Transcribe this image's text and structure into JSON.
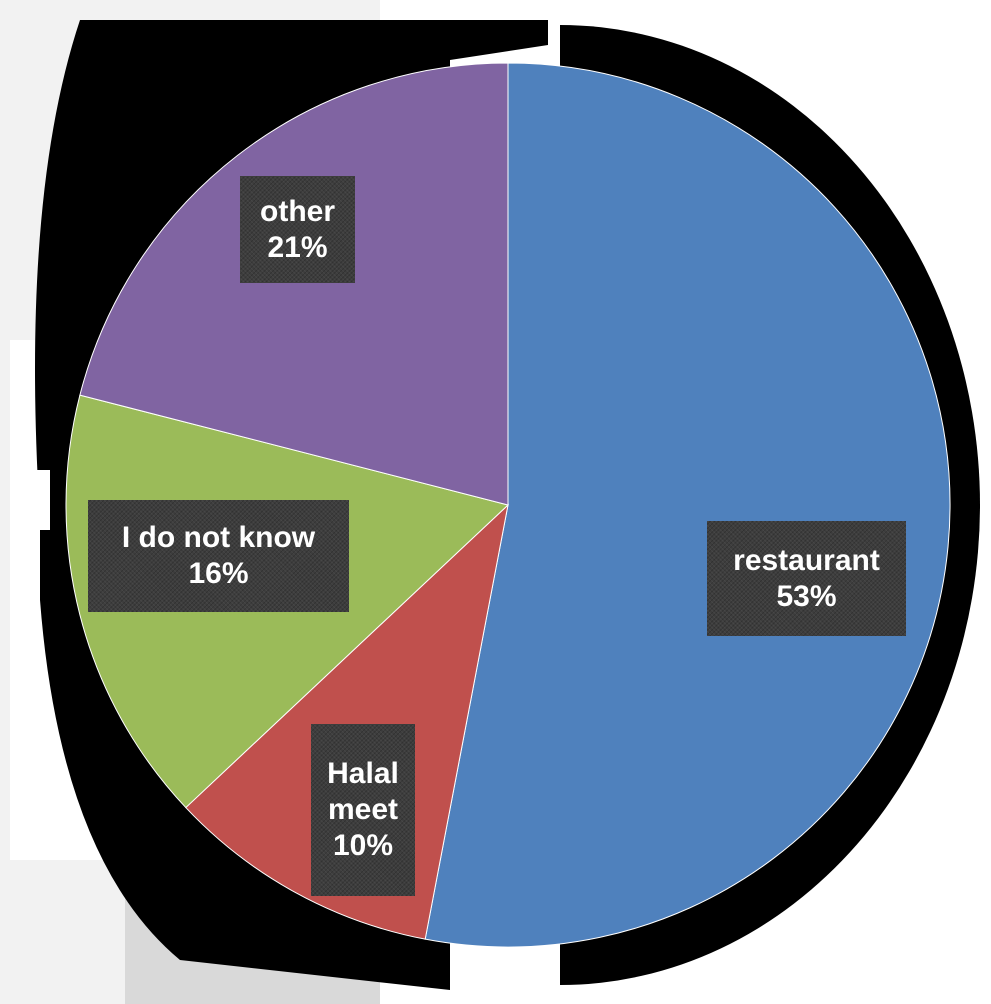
{
  "chart_data": {
    "type": "pie",
    "title": "",
    "slices": [
      {
        "label": "restaurant",
        "value": 53,
        "display": "53%",
        "color": "#4f81bd"
      },
      {
        "label": "Halal meet",
        "value": 10,
        "display": "10%",
        "color": "#c0504d"
      },
      {
        "label": "I do not know",
        "value": 16,
        "display": "16%",
        "color": "#9bbb59"
      },
      {
        "label": "other",
        "value": 21,
        "display": "21%",
        "color": "#8064a2"
      }
    ],
    "start_angle_deg": 0,
    "direction": "clockwise",
    "legend": "none",
    "data_labels": "on-slice"
  },
  "colors": {
    "label_background": "#3d3d3d",
    "label_text": "#ffffff",
    "shadow": "#000000"
  }
}
